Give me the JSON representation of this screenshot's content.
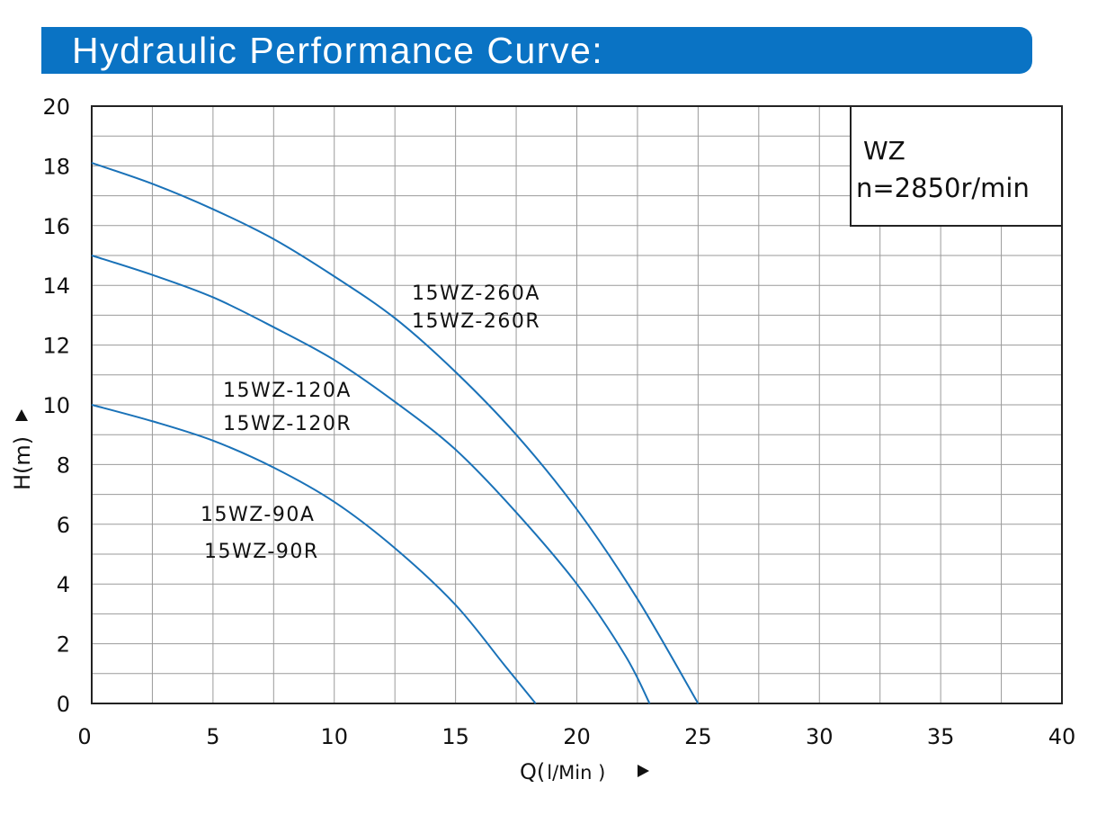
{
  "header": {
    "title": "Hydraulic  Performance  Curve:"
  },
  "info_box": {
    "line1": "WZ",
    "line2": "n=2850r/min"
  },
  "chart_data": {
    "type": "line",
    "xlabel": "Q",
    "xlabel_unit": "l/Min )",
    "ylabel": "H(m)",
    "xlim": [
      0,
      40
    ],
    "ylim": [
      0,
      20
    ],
    "x_ticks": [
      0,
      5,
      10,
      15,
      20,
      25,
      30,
      35,
      40
    ],
    "y_ticks": [
      0,
      2,
      4,
      6,
      8,
      10,
      12,
      14,
      16,
      18,
      20
    ],
    "grid": true,
    "line_color": "#1a72b8",
    "series": [
      {
        "labels": [
          "15WZ-260A",
          "15WZ-260R"
        ],
        "points": [
          [
            0,
            18.1
          ],
          [
            2.5,
            17.4
          ],
          [
            5,
            16.55
          ],
          [
            7.5,
            15.55
          ],
          [
            10,
            14.3
          ],
          [
            12.5,
            12.9
          ],
          [
            15,
            11.1
          ],
          [
            17.5,
            9.0
          ],
          [
            20,
            6.5
          ],
          [
            22.5,
            3.5
          ],
          [
            25,
            0
          ]
        ]
      },
      {
        "labels": [
          "15WZ-120A",
          "15WZ-120R"
        ],
        "points": [
          [
            0,
            15.0
          ],
          [
            2.5,
            14.35
          ],
          [
            5,
            13.6
          ],
          [
            7.5,
            12.6
          ],
          [
            10,
            11.5
          ],
          [
            12.5,
            10.1
          ],
          [
            15,
            8.5
          ],
          [
            17.5,
            6.4
          ],
          [
            20,
            4.0
          ],
          [
            22,
            1.6
          ],
          [
            23,
            0
          ]
        ]
      },
      {
        "labels": [
          "15WZ-90A",
          "15WZ-90R"
        ],
        "points": [
          [
            0,
            10.0
          ],
          [
            2.5,
            9.45
          ],
          [
            5,
            8.8
          ],
          [
            7.5,
            7.9
          ],
          [
            10,
            6.75
          ],
          [
            12.5,
            5.2
          ],
          [
            15,
            3.3
          ],
          [
            17,
            1.3
          ],
          [
            18.3,
            0
          ]
        ]
      }
    ]
  }
}
